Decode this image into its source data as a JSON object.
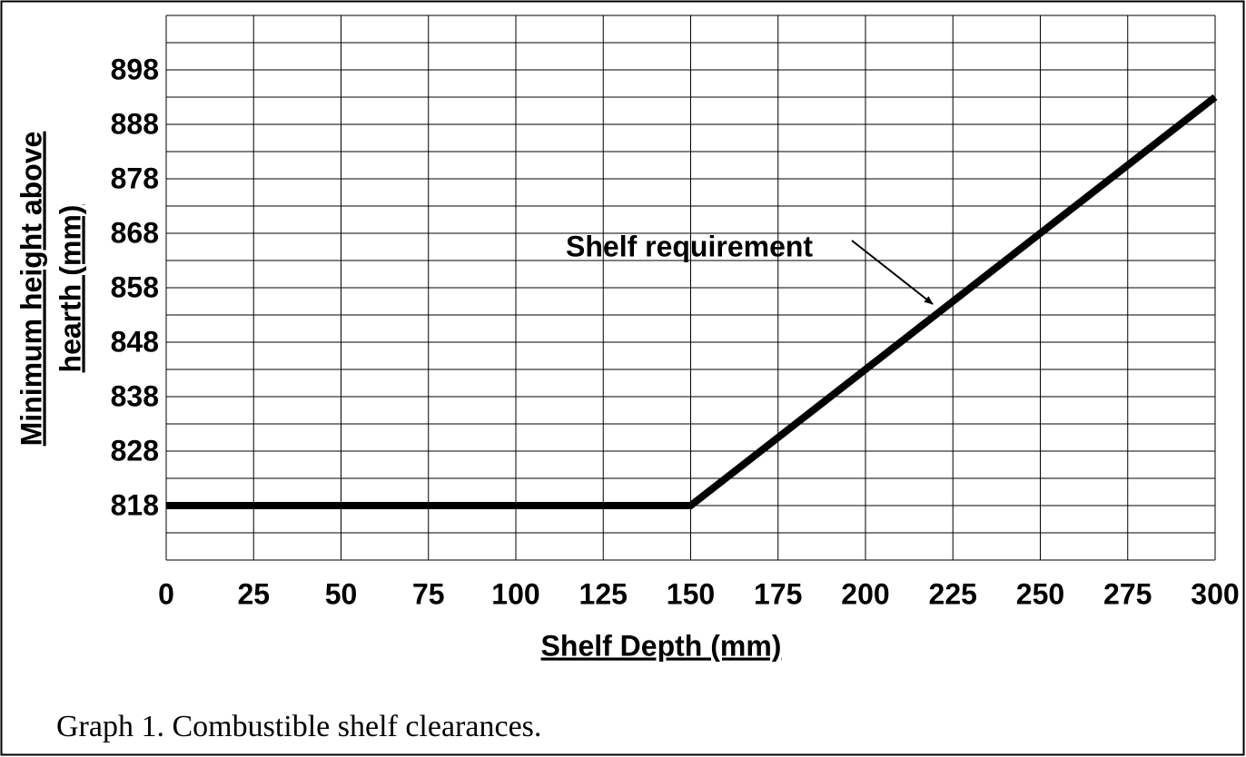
{
  "chart_data": {
    "type": "line",
    "x": [
      0,
      150,
      300
    ],
    "series": [
      {
        "name": "Shelf requirement",
        "color": "#000000",
        "values": [
          818,
          818,
          893
        ]
      }
    ],
    "xlim": [
      0,
      300
    ],
    "xticks": [
      0,
      25,
      50,
      75,
      100,
      125,
      150,
      175,
      200,
      225,
      250,
      275,
      300
    ],
    "ylim": [
      808,
      908
    ],
    "yticks": [
      818,
      828,
      838,
      848,
      858,
      868,
      878,
      888,
      898
    ],
    "ygrid": [
      808,
      813,
      818,
      823,
      828,
      833,
      838,
      843,
      848,
      853,
      858,
      863,
      868,
      873,
      878,
      883,
      888,
      893,
      898,
      903,
      908
    ],
    "grid": true,
    "xlabel": "Shelf Depth (mm)",
    "ylabel": [
      "Minimum height above",
      "hearth (mm)"
    ],
    "annotation": "Shelf requirement",
    "caption": "Graph 1. Combustible shelf clearances."
  }
}
